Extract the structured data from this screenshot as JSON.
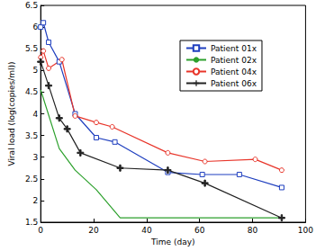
{
  "chart_data": {
    "type": "line",
    "x_label": "Time (day)",
    "y_label": "Viral load (log(copies/ml))",
    "xlim": [
      0,
      100
    ],
    "xticks": [
      0,
      20,
      40,
      60,
      80,
      100
    ],
    "ylim": [
      1.5,
      6.5
    ],
    "yticks": [
      1.5,
      2,
      2.5,
      3,
      3.5,
      4,
      4.5,
      5,
      5.5,
      6,
      6.5
    ],
    "grid": false,
    "legend": "upper right",
    "series": [
      {
        "name": "Patient 01x",
        "color": "#1f3fbf",
        "marker": "square",
        "x": [
          0,
          1,
          3,
          7,
          13,
          21,
          28,
          48,
          61,
          75,
          91
        ],
        "values": [
          6.0,
          6.1,
          5.65,
          5.2,
          4.0,
          3.45,
          3.35,
          2.65,
          2.6,
          2.6,
          2.3
        ]
      },
      {
        "name": "Patient 02x",
        "color": "#2ca02c",
        "marker": "none",
        "x": [
          0,
          7,
          13,
          21,
          30,
          91
        ],
        "values": [
          4.55,
          3.2,
          2.7,
          2.25,
          1.6,
          1.6
        ]
      },
      {
        "name": "Patient 04x",
        "color": "#e8352a",
        "marker": "circle",
        "x": [
          0,
          1,
          3,
          8,
          13,
          21,
          27,
          48,
          62,
          81,
          91
        ],
        "values": [
          5.3,
          5.45,
          5.05,
          5.25,
          3.95,
          3.8,
          3.7,
          3.1,
          2.9,
          2.95,
          2.7
        ]
      },
      {
        "name": "Patient 06x",
        "color": "#222222",
        "marker": "plus",
        "x": [
          0,
          3,
          7,
          10,
          15,
          30,
          48,
          62,
          91
        ],
        "values": [
          5.2,
          4.65,
          3.9,
          3.65,
          3.1,
          2.75,
          2.7,
          2.4,
          1.6
        ]
      }
    ]
  }
}
